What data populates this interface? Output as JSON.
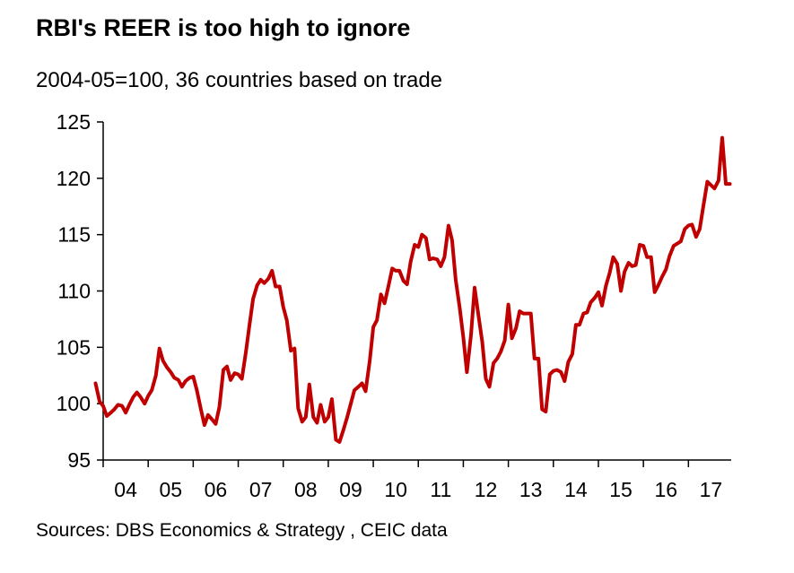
{
  "header": {
    "title": "RBI's REER is too high to ignore",
    "subtitle": "2004-05=100, 36 countries based on trade"
  },
  "footer": {
    "source": "Sources: DBS Economics & Strategy , CEIC data"
  },
  "chart_data": {
    "type": "line",
    "title": "RBI's REER is too high to ignore",
    "subtitle": "2004-05=100, 36 countries based on trade",
    "xlabel": "",
    "ylabel": "",
    "ylim": [
      95,
      125
    ],
    "xlim": [
      2004,
      2017.95
    ],
    "yticks": [
      95,
      100,
      105,
      110,
      115,
      120,
      125
    ],
    "xtick_labels": [
      "04",
      "05",
      "06",
      "07",
      "08",
      "09",
      "10",
      "11",
      "12",
      "13",
      "14",
      "15",
      "16",
      "17"
    ],
    "grid": false,
    "line_color": "#C00000",
    "series": [
      {
        "name": "REER",
        "points": [
          [
            2004.33,
            101.8
          ],
          [
            2004.42,
            100.2
          ],
          [
            2004.5,
            99.8
          ],
          [
            2004.58,
            98.9
          ],
          [
            2004.67,
            99.2
          ],
          [
            2004.75,
            99.5
          ],
          [
            2004.83,
            99.9
          ],
          [
            2004.92,
            99.8
          ],
          [
            2005.0,
            99.2
          ],
          [
            2005.08,
            99.9
          ],
          [
            2005.17,
            100.6
          ],
          [
            2005.25,
            101.0
          ],
          [
            2005.33,
            100.6
          ],
          [
            2005.42,
            100.0
          ],
          [
            2005.5,
            100.7
          ],
          [
            2005.58,
            101.2
          ],
          [
            2005.67,
            102.5
          ],
          [
            2005.75,
            104.9
          ],
          [
            2005.83,
            103.8
          ],
          [
            2005.92,
            103.2
          ],
          [
            2006.0,
            102.8
          ],
          [
            2006.08,
            102.3
          ],
          [
            2006.17,
            102.1
          ],
          [
            2006.25,
            101.5
          ],
          [
            2006.33,
            102.0
          ],
          [
            2006.42,
            102.3
          ],
          [
            2006.5,
            102.4
          ],
          [
            2006.58,
            101.2
          ],
          [
            2006.67,
            99.5
          ],
          [
            2006.75,
            98.1
          ],
          [
            2006.83,
            99.0
          ],
          [
            2006.92,
            98.6
          ],
          [
            2007.0,
            98.2
          ],
          [
            2007.08,
            99.7
          ],
          [
            2007.17,
            103.0
          ],
          [
            2007.25,
            103.3
          ],
          [
            2007.33,
            102.1
          ],
          [
            2007.42,
            102.7
          ],
          [
            2007.5,
            102.6
          ],
          [
            2007.58,
            102.2
          ],
          [
            2007.67,
            104.6
          ],
          [
            2007.75,
            107.0
          ],
          [
            2007.83,
            109.3
          ],
          [
            2007.92,
            110.5
          ],
          [
            2008.0,
            111.0
          ],
          [
            2008.08,
            110.7
          ],
          [
            2008.17,
            111.1
          ],
          [
            2008.25,
            111.8
          ],
          [
            2008.33,
            110.4
          ],
          [
            2008.42,
            110.4
          ],
          [
            2008.5,
            108.6
          ],
          [
            2008.58,
            107.4
          ],
          [
            2008.67,
            104.7
          ],
          [
            2008.75,
            104.9
          ],
          [
            2008.83,
            99.6
          ],
          [
            2008.92,
            98.4
          ],
          [
            2009.0,
            98.8
          ],
          [
            2009.08,
            101.7
          ],
          [
            2009.17,
            98.8
          ],
          [
            2009.25,
            98.3
          ],
          [
            2009.33,
            99.9
          ],
          [
            2009.42,
            98.4
          ],
          [
            2009.5,
            98.8
          ],
          [
            2009.58,
            100.4
          ],
          [
            2009.67,
            96.8
          ],
          [
            2009.75,
            96.6
          ],
          [
            2009.83,
            97.6
          ],
          [
            2009.92,
            98.8
          ],
          [
            2010.0,
            100.0
          ],
          [
            2010.08,
            101.2
          ],
          [
            2010.17,
            101.5
          ],
          [
            2010.25,
            101.8
          ],
          [
            2010.33,
            101.1
          ],
          [
            2010.42,
            103.8
          ],
          [
            2010.5,
            106.8
          ],
          [
            2010.58,
            107.4
          ],
          [
            2010.67,
            109.7
          ],
          [
            2010.75,
            108.9
          ],
          [
            2010.83,
            110.3
          ],
          [
            2010.92,
            112.0
          ],
          [
            2011.0,
            111.8
          ],
          [
            2011.08,
            111.8
          ],
          [
            2011.17,
            110.9
          ],
          [
            2011.25,
            110.6
          ],
          [
            2011.33,
            112.6
          ],
          [
            2011.42,
            114.1
          ],
          [
            2011.5,
            113.9
          ],
          [
            2011.58,
            115.0
          ],
          [
            2011.67,
            114.7
          ],
          [
            2011.75,
            112.8
          ],
          [
            2011.83,
            112.9
          ],
          [
            2011.92,
            112.8
          ],
          [
            2012.0,
            112.2
          ],
          [
            2012.08,
            113.0
          ],
          [
            2012.17,
            115.8
          ],
          [
            2012.25,
            114.5
          ],
          [
            2012.33,
            111.0
          ],
          [
            2012.42,
            108.5
          ],
          [
            2012.5,
            105.9
          ],
          [
            2012.58,
            102.8
          ],
          [
            2012.67,
            106.1
          ],
          [
            2012.75,
            110.3
          ],
          [
            2012.83,
            108.0
          ],
          [
            2012.92,
            105.5
          ],
          [
            2013.0,
            102.2
          ],
          [
            2013.08,
            101.5
          ],
          [
            2013.17,
            103.6
          ],
          [
            2013.25,
            104.0
          ],
          [
            2013.33,
            104.6
          ],
          [
            2013.42,
            105.6
          ],
          [
            2013.5,
            108.8
          ],
          [
            2013.58,
            105.8
          ],
          [
            2013.67,
            106.7
          ],
          [
            2013.75,
            108.2
          ],
          [
            2013.83,
            108.0
          ],
          [
            2013.92,
            108.0
          ],
          [
            2014.0,
            108.0
          ],
          [
            2014.08,
            104.0
          ],
          [
            2014.17,
            104.0
          ],
          [
            2014.25,
            99.5
          ],
          [
            2014.33,
            99.3
          ],
          [
            2014.42,
            102.6
          ],
          [
            2014.5,
            102.9
          ],
          [
            2014.58,
            103.0
          ],
          [
            2014.67,
            102.8
          ],
          [
            2014.75,
            102.0
          ],
          [
            2014.83,
            103.7
          ],
          [
            2014.92,
            104.4
          ],
          [
            2015.0,
            107.0
          ],
          [
            2015.08,
            107.0
          ],
          [
            2015.17,
            108.0
          ],
          [
            2015.25,
            108.1
          ],
          [
            2015.33,
            109.0
          ],
          [
            2015.42,
            109.4
          ],
          [
            2015.5,
            109.9
          ],
          [
            2015.58,
            108.7
          ],
          [
            2015.67,
            110.5
          ],
          [
            2015.75,
            111.6
          ],
          [
            2015.83,
            113.0
          ],
          [
            2015.92,
            112.4
          ],
          [
            2016.0,
            110.0
          ],
          [
            2016.08,
            111.7
          ],
          [
            2016.17,
            112.5
          ],
          [
            2016.25,
            112.2
          ],
          [
            2016.33,
            112.3
          ],
          [
            2016.42,
            114.1
          ],
          [
            2016.5,
            114.0
          ],
          [
            2016.58,
            113.0
          ],
          [
            2016.67,
            113.0
          ],
          [
            2016.75,
            109.9
          ],
          [
            2016.83,
            110.5
          ],
          [
            2016.92,
            111.3
          ],
          [
            2017.0,
            111.9
          ],
          [
            2017.08,
            113.1
          ],
          [
            2017.17,
            114.0
          ],
          [
            2017.25,
            114.2
          ],
          [
            2017.33,
            114.4
          ],
          [
            2017.42,
            115.5
          ],
          [
            2017.5,
            115.8
          ],
          [
            2017.58,
            115.9
          ],
          [
            2017.67,
            114.8
          ],
          [
            2017.75,
            115.5
          ],
          [
            2017.83,
            117.5
          ],
          [
            2017.92,
            119.7
          ],
          [
            2018.0,
            119.4
          ],
          [
            2018.08,
            119.1
          ],
          [
            2018.17,
            119.8
          ],
          [
            2018.25,
            123.6
          ],
          [
            2018.33,
            119.5
          ],
          [
            2018.42,
            119.5
          ]
        ]
      }
    ]
  }
}
